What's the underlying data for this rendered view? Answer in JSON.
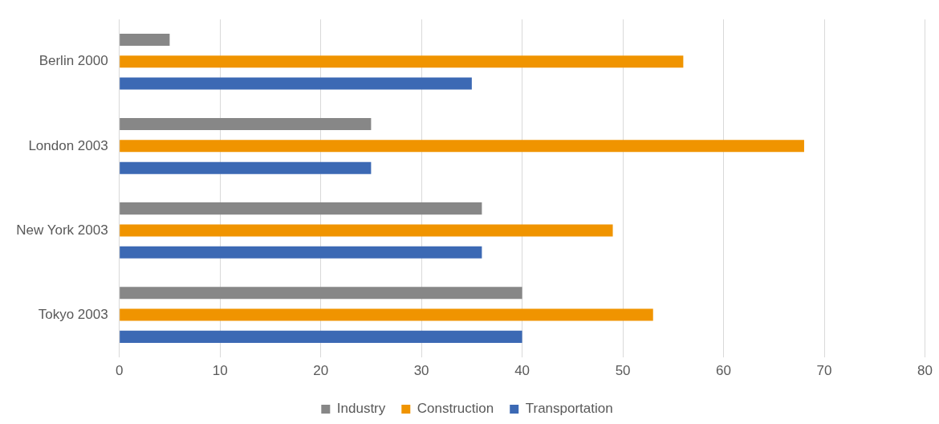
{
  "chart_data": {
    "type": "bar",
    "orientation": "horizontal",
    "categories": [
      "Berlin 2000",
      "London 2003",
      "New York 2003",
      "Tokyo 2003"
    ],
    "series": [
      {
        "name": "Industry",
        "color": "#878787",
        "values": [
          5,
          25,
          36,
          40
        ]
      },
      {
        "name": "Construction",
        "color": "#f09400",
        "values": [
          56,
          68,
          49,
          53
        ]
      },
      {
        "name": "Transportation",
        "color": "#3c69b4",
        "values": [
          35,
          25,
          36,
          40
        ]
      }
    ],
    "xlim": [
      0,
      80
    ],
    "xticks": [
      0,
      10,
      20,
      30,
      40,
      50,
      60,
      70,
      80
    ],
    "grid": "x",
    "legend": "bottom"
  }
}
